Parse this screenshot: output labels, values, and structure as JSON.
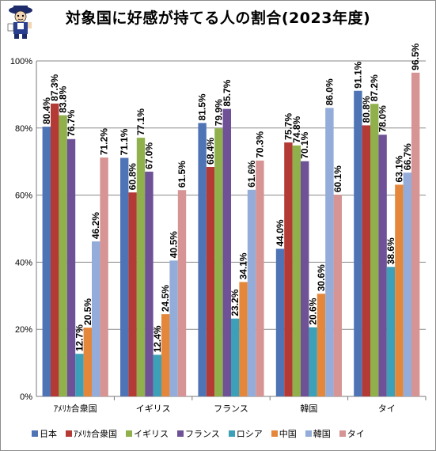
{
  "title": "対象国に好感が持てる人の割合(2023年度)",
  "chart_data": {
    "type": "bar",
    "categories": [
      "ｱﾒﾘｶ合衆国",
      "イギリス",
      "フランス",
      "韓国",
      "タイ"
    ],
    "ylim": [
      0,
      100
    ],
    "yticks": [
      "0%",
      "20%",
      "40%",
      "60%",
      "80%",
      "100%"
    ],
    "grid": true,
    "legend_position": "bottom",
    "series": [
      {
        "name": "日本",
        "color": "#4f74b6",
        "values": [
          80.4,
          71.1,
          81.5,
          44.0,
          91.1
        ],
        "labels": [
          "80.4%",
          "71.1%",
          "81.5%",
          "44.0%",
          "91.1%"
        ]
      },
      {
        "name": "ｱﾒﾘｶ合衆国",
        "color": "#b43a36",
        "values": [
          87.3,
          60.8,
          68.4,
          75.7,
          80.8
        ],
        "labels": [
          "87.3%",
          "60.8%",
          "68.4%",
          "75.7%",
          "80.8%"
        ]
      },
      {
        "name": "イギリス",
        "color": "#8fb04b",
        "values": [
          83.8,
          77.1,
          79.9,
          74.8,
          87.2
        ],
        "labels": [
          "83.8%",
          "77.1%",
          "79.9%",
          "74.8%",
          "87.2%"
        ]
      },
      {
        "name": "フランス",
        "color": "#6e5196",
        "values": [
          76.7,
          67.0,
          85.7,
          70.1,
          78.0
        ],
        "labels": [
          "76.7%",
          "67.0%",
          "85.7%",
          "70.1%",
          "78.0%"
        ]
      },
      {
        "name": "ロシア",
        "color": "#3ba0b8",
        "values": [
          12.7,
          12.4,
          23.2,
          20.6,
          38.6
        ],
        "labels": [
          "12.7%",
          "12.4%",
          "23.2%",
          "20.6%",
          "38.6%"
        ]
      },
      {
        "name": "中国",
        "color": "#e4873b",
        "values": [
          20.5,
          24.5,
          34.1,
          30.6,
          63.1
        ],
        "labels": [
          "20.5%",
          "24.5%",
          "34.1%",
          "30.6%",
          "63.1%"
        ]
      },
      {
        "name": "韓国",
        "color": "#93acd9",
        "values": [
          46.2,
          40.5,
          61.6,
          86.0,
          66.7
        ],
        "labels": [
          "46.2%",
          "40.5%",
          "61.6%",
          "86.0%",
          "66.7%"
        ]
      },
      {
        "name": "タイ",
        "color": "#d69594",
        "values": [
          71.2,
          61.5,
          70.3,
          60.1,
          96.5
        ],
        "labels": [
          "71.2%",
          "61.5%",
          "70.3%",
          "60.1%",
          "96.5%"
        ]
      }
    ]
  }
}
